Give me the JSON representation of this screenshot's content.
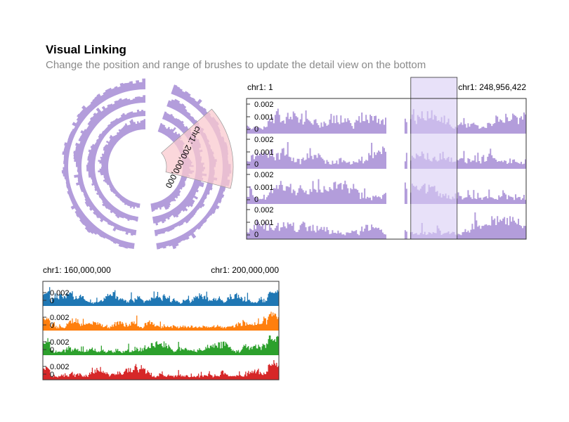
{
  "header": {
    "title": "Visual Linking",
    "subtitle": "Change the position and range of brushes to update the detail view on the bottom"
  },
  "colors": {
    "overview_fill": "#b39ddb",
    "brush_rect_fill": "#d9cdf5",
    "brush_arc_fill": "#f9c9cf",
    "detail_series": [
      "#1f77b4",
      "#ff7f0e",
      "#2ca02c",
      "#d62728"
    ]
  },
  "chart_data": [
    {
      "id": "circular-overview",
      "type": "area",
      "layout": "circular",
      "rings": 4,
      "brush_label": "chr1: 200,000,000",
      "brush_range": [
        160000000,
        200000000
      ]
    },
    {
      "id": "linear-overview",
      "type": "area",
      "x_start_label": "chr1: 1",
      "x_end_label": "chr1: 248,956,422",
      "xlim": [
        1,
        248956422
      ],
      "tracks": 4,
      "y_ticks": [
        "0.002",
        "0.001",
        "0"
      ],
      "ylim": [
        0,
        0.002
      ],
      "brush_range": [
        160000000,
        200000000
      ]
    },
    {
      "id": "detail-view",
      "type": "area",
      "x_start_label": "chr1: 160,000,000",
      "x_end_label": "chr1: 200,000,000",
      "xlim": [
        160000000,
        200000000
      ],
      "tracks": 4,
      "y_ticks": [
        "0.002",
        "0"
      ],
      "ylim": [
        0,
        0.002
      ]
    }
  ]
}
